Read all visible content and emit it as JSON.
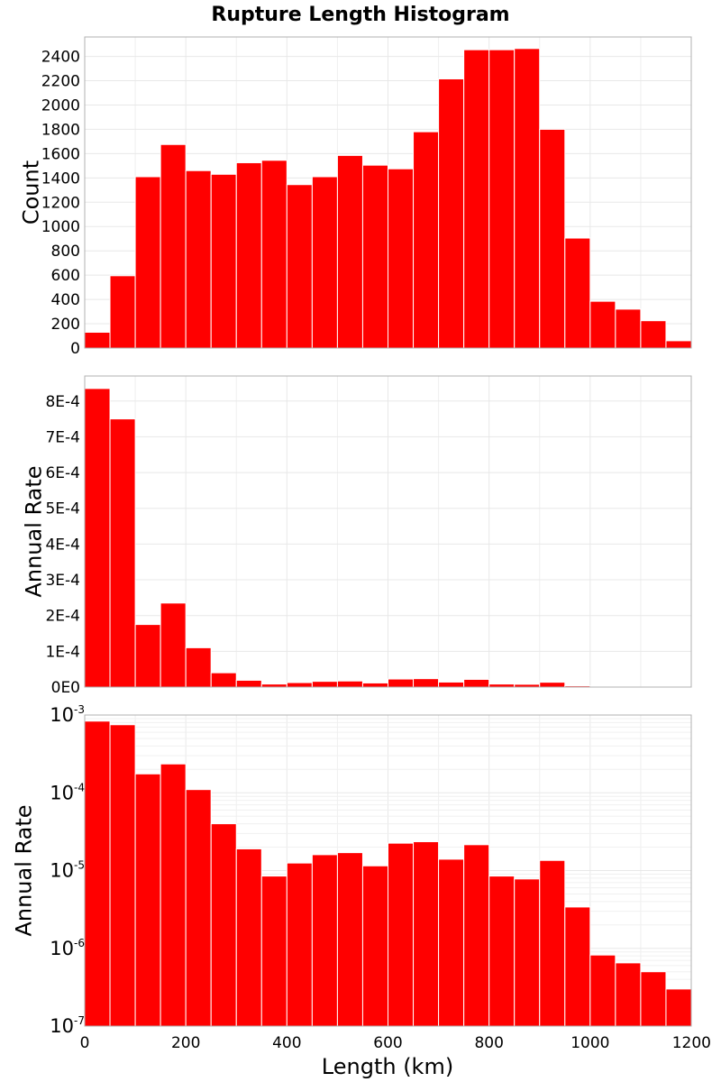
{
  "chart_data": {
    "type": "bar",
    "title": "Rupture Length Histogram",
    "xlabel": "Length (km)",
    "xlim": [
      0,
      1200
    ],
    "x_ticks": [
      "0",
      "200",
      "400",
      "600",
      "800",
      "1000",
      "1200"
    ],
    "x_tick_values": [
      0,
      200,
      400,
      600,
      800,
      1000,
      1200
    ],
    "bin_width": 50,
    "bin_starts": [
      0,
      50,
      100,
      150,
      200,
      250,
      300,
      350,
      400,
      450,
      500,
      550,
      600,
      650,
      700,
      750,
      800,
      850,
      900,
      950,
      1000,
      1050,
      1100,
      1150
    ],
    "bar_color": "#ff0000",
    "panels": [
      {
        "id": "count",
        "ylabel": "Count",
        "scale": "linear",
        "ylim": [
          0,
          2560
        ],
        "y_ticks": [
          "0",
          "200",
          "400",
          "600",
          "800",
          "1000",
          "1200",
          "1400",
          "1600",
          "1800",
          "2000",
          "2200",
          "2400"
        ],
        "y_tick_values": [
          0,
          200,
          400,
          600,
          800,
          1000,
          1200,
          1400,
          1600,
          1800,
          2000,
          2200,
          2400
        ],
        "values": [
          130,
          595,
          1410,
          1675,
          1460,
          1430,
          1525,
          1545,
          1345,
          1410,
          1585,
          1505,
          1475,
          1780,
          2215,
          2455,
          2455,
          2465,
          1800,
          905,
          385,
          320,
          225,
          60
        ]
      },
      {
        "id": "rate-linear",
        "ylabel": "Annual Rate",
        "scale": "linear",
        "ylim": [
          0,
          0.00087
        ],
        "y_ticks": [
          "0E0",
          "1E-4",
          "2E-4",
          "3E-4",
          "4E-4",
          "5E-4",
          "6E-4",
          "7E-4",
          "8E-4"
        ],
        "y_tick_values": [
          0,
          0.0001,
          0.0002,
          0.0003,
          0.0004,
          0.0005,
          0.0006,
          0.0007,
          0.0008
        ],
        "values": [
          0.000835,
          0.00075,
          0.000175,
          0.000235,
          0.00011,
          4e-05,
          1.9e-05,
          8.5e-06,
          1.25e-05,
          1.6e-05,
          1.7e-05,
          1.15e-05,
          2.25e-05,
          2.35e-05,
          1.4e-05,
          2.15e-05,
          8.5e-06,
          7.8e-06,
          1.35e-05,
          3.4e-06,
          8.2e-07,
          6.5e-07,
          5e-07,
          3e-07
        ]
      },
      {
        "id": "rate-log",
        "ylabel": "Annual Rate",
        "scale": "log",
        "ylim": [
          1e-07,
          0.001
        ],
        "y_ticks": [
          {
            "base": "10",
            "exp": "-7"
          },
          {
            "base": "10",
            "exp": "-6"
          },
          {
            "base": "10",
            "exp": "-5"
          },
          {
            "base": "10",
            "exp": "-4"
          },
          {
            "base": "10",
            "exp": "-3"
          }
        ],
        "y_tick_values": [
          1e-07,
          1e-06,
          1e-05,
          0.0001,
          0.001
        ],
        "values": [
          0.000835,
          0.00075,
          0.000175,
          0.000235,
          0.00011,
          4e-05,
          1.9e-05,
          8.5e-06,
          1.25e-05,
          1.6e-05,
          1.7e-05,
          1.15e-05,
          2.25e-05,
          2.35e-05,
          1.4e-05,
          2.15e-05,
          8.5e-06,
          7.8e-06,
          1.35e-05,
          3.4e-06,
          8.2e-07,
          6.5e-07,
          5e-07,
          3e-07
        ]
      }
    ]
  }
}
